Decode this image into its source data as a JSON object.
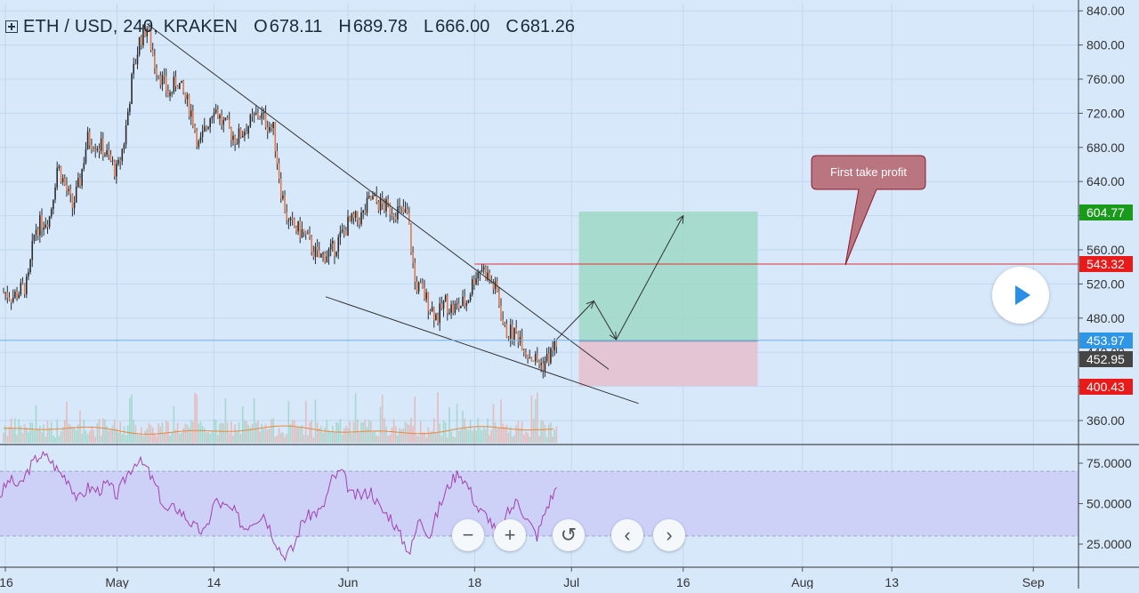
{
  "header": {
    "symbol": "ETH / USD, 240, KRAKEN",
    "o_label": "O",
    "o_value": "678.11",
    "h_label": "H",
    "h_value": "689.78",
    "l_label": "L",
    "l_value": "666.00",
    "c_label": "C",
    "c_value": "681.26"
  },
  "annotation": {
    "text": "First take profit"
  },
  "price_badges": [
    {
      "text": "604.77",
      "color": "#1a9a1a"
    },
    {
      "text": "543.32",
      "color": "#e81a1a"
    },
    {
      "text": "453.97",
      "color": "#2f96e6"
    },
    {
      "text": "452.95",
      "color": "#454545"
    },
    {
      "text": "400.43",
      "color": "#e81a1a"
    }
  ],
  "controls": {
    "zoom_out": "−",
    "zoom_in": "+",
    "reset": "↺",
    "back": "‹",
    "forward": "›"
  },
  "colors": {
    "background": "#d7e8fb",
    "rsi_band": "#cdd0f7",
    "rsi_line": "#a440b0",
    "profit_zone": "#9fd8c4",
    "loss_zone": "#e6c1cf",
    "candle_up": "#2b2b2b",
    "candle_down": "#2b2b2b"
  },
  "chart_data": [
    {
      "type": "candlestick",
      "title": "ETH / USD, 240, KRAKEN",
      "ylim": [
        330,
        850
      ],
      "y_ticks": [
        "840.00",
        "800.00",
        "760.00",
        "720.00",
        "680.00",
        "640.00",
        "600.00",
        "560.00",
        "520.00",
        "480.00",
        "440.00",
        "400.00",
        "360.00"
      ],
      "x_ticks": [
        "16",
        "May",
        "14",
        "Jun",
        "18",
        "Jul",
        "16",
        "Aug",
        "13",
        "Sep"
      ],
      "price_path": [
        {
          "date": "2018-04-16",
          "price": 510
        },
        {
          "date": "2018-04-17",
          "price": 505
        },
        {
          "date": "2018-04-19",
          "price": 520
        },
        {
          "date": "2018-04-20",
          "price": 585
        },
        {
          "date": "2018-04-22",
          "price": 600
        },
        {
          "date": "2018-04-23",
          "price": 660
        },
        {
          "date": "2018-04-25",
          "price": 610
        },
        {
          "date": "2018-04-26",
          "price": 640
        },
        {
          "date": "2018-04-27",
          "price": 690
        },
        {
          "date": "2018-04-29",
          "price": 680
        },
        {
          "date": "2018-05-01",
          "price": 650
        },
        {
          "date": "2018-05-02",
          "price": 690
        },
        {
          "date": "2018-05-03",
          "price": 760
        },
        {
          "date": "2018-05-04",
          "price": 805
        },
        {
          "date": "2018-05-05",
          "price": 822
        },
        {
          "date": "2018-05-06",
          "price": 780
        },
        {
          "date": "2018-05-08",
          "price": 740
        },
        {
          "date": "2018-05-09",
          "price": 760
        },
        {
          "date": "2018-05-11",
          "price": 720
        },
        {
          "date": "2018-05-12",
          "price": 680
        },
        {
          "date": "2018-05-14",
          "price": 730
        },
        {
          "date": "2018-05-15",
          "price": 710
        },
        {
          "date": "2018-05-17",
          "price": 690
        },
        {
          "date": "2018-05-19",
          "price": 710
        },
        {
          "date": "2018-05-20",
          "price": 720
        },
        {
          "date": "2018-05-22",
          "price": 700
        },
        {
          "date": "2018-05-23",
          "price": 630
        },
        {
          "date": "2018-05-24",
          "price": 590
        },
        {
          "date": "2018-05-26",
          "price": 580
        },
        {
          "date": "2018-05-28",
          "price": 550
        },
        {
          "date": "2018-05-30",
          "price": 560
        },
        {
          "date": "2018-06-01",
          "price": 590
        },
        {
          "date": "2018-06-03",
          "price": 600
        },
        {
          "date": "2018-06-04",
          "price": 620
        },
        {
          "date": "2018-06-06",
          "price": 610
        },
        {
          "date": "2018-06-08",
          "price": 605
        },
        {
          "date": "2018-06-09",
          "price": 600
        },
        {
          "date": "2018-06-10",
          "price": 520
        },
        {
          "date": "2018-06-11",
          "price": 510
        },
        {
          "date": "2018-06-13",
          "price": 480
        },
        {
          "date": "2018-06-14",
          "price": 500
        },
        {
          "date": "2018-06-15",
          "price": 490
        },
        {
          "date": "2018-06-17",
          "price": 500
        },
        {
          "date": "2018-06-18",
          "price": 530
        },
        {
          "date": "2018-06-19",
          "price": 540
        },
        {
          "date": "2018-06-20",
          "price": 525
        },
        {
          "date": "2018-06-21",
          "price": 510
        },
        {
          "date": "2018-06-22",
          "price": 465
        },
        {
          "date": "2018-06-24",
          "price": 460
        },
        {
          "date": "2018-06-25",
          "price": 440
        },
        {
          "date": "2018-06-27",
          "price": 425
        },
        {
          "date": "2018-06-28",
          "price": 435
        },
        {
          "date": "2018-06-29",
          "price": 452
        }
      ],
      "volume": "volume bars along bottom of price pane",
      "trendlines": [
        {
          "name": "upper trendline",
          "from": {
            "date": "2018-05-05",
            "price": 825
          },
          "to": {
            "date": "2018-07-06",
            "price": 420
          }
        },
        {
          "name": "lower trendline",
          "from": {
            "date": "2018-05-29",
            "price": 505
          },
          "to": {
            "date": "2018-07-10",
            "price": 380
          }
        }
      ],
      "horizontal_line": {
        "price": 543.32,
        "from_date": "2018-06-18"
      },
      "position": {
        "entry": 452.95,
        "target": 604.77,
        "stop": 400.43,
        "from_date": "2018-07-02",
        "to_date": "2018-07-26"
      },
      "projection": [
        {
          "date": "2018-06-29",
          "price": 455
        },
        {
          "date": "2018-07-04",
          "price": 500
        },
        {
          "date": "2018-07-07",
          "price": 455
        },
        {
          "date": "2018-07-16",
          "price": 600
        }
      ]
    },
    {
      "type": "line",
      "title": "RSI",
      "ylim": [
        10,
        85
      ],
      "y_ticks": [
        "75.0000",
        "50.0000",
        "25.0000"
      ],
      "band": [
        30,
        70
      ],
      "values": [
        55,
        65,
        60,
        72,
        80,
        78,
        70,
        65,
        52,
        60,
        58,
        62,
        55,
        68,
        77,
        72,
        60,
        45,
        48,
        42,
        35,
        32,
        52,
        48,
        45,
        35,
        40,
        44,
        30,
        18,
        22,
        40,
        44,
        46,
        65,
        70,
        55,
        55,
        58,
        46,
        42,
        30,
        20,
        42,
        30,
        48,
        62,
        70,
        60,
        46,
        42,
        30,
        44,
        52,
        40,
        30,
        48,
        60
      ]
    }
  ]
}
